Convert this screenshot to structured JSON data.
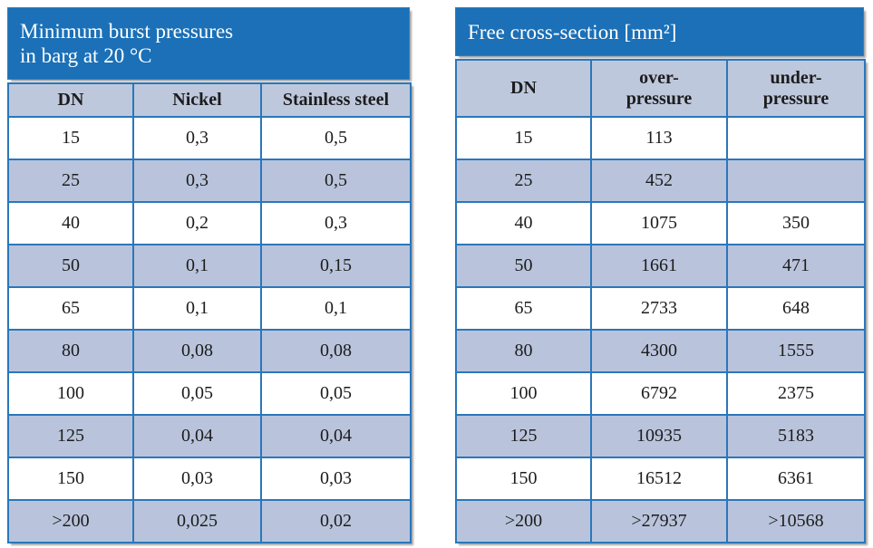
{
  "page": {
    "background_color": "#ffffff"
  },
  "colors": {
    "title_bar_bg": "#1b70b7",
    "title_text": "#ffffff",
    "cell_border": "#2a77bb",
    "header_row_bg": "#bec8dd",
    "shaded_row_bg": "#b9c4dc",
    "plain_row_bg": "#ffffff",
    "data_text": "#1c1c1c"
  },
  "tables": [
    {
      "name": "minimum-burst-pressures",
      "title": "Minimum burst pressures\nin barg at 20 °C",
      "columns": [
        "DN",
        "Nickel",
        "Stainless steel"
      ],
      "rows": [
        [
          "15",
          "0,3",
          "0,5"
        ],
        [
          "25",
          "0,3",
          "0,5"
        ],
        [
          "40",
          "0,2",
          "0,3"
        ],
        [
          "50",
          "0,1",
          "0,15"
        ],
        [
          "65",
          "0,1",
          "0,1"
        ],
        [
          "80",
          "0,08",
          "0,08"
        ],
        [
          "100",
          "0,05",
          "0,05"
        ],
        [
          "125",
          "0,04",
          "0,04"
        ],
        [
          "150",
          "0,03",
          "0,03"
        ],
        [
          ">200",
          "0,025",
          "0,02"
        ]
      ]
    },
    {
      "name": "free-cross-section",
      "title": "Free cross-section [mm²]",
      "columns": [
        "DN",
        "over-\npressure",
        "under-\npressure"
      ],
      "rows": [
        [
          "15",
          "113",
          ""
        ],
        [
          "25",
          "452",
          ""
        ],
        [
          "40",
          "1075",
          "350"
        ],
        [
          "50",
          "1661",
          "471"
        ],
        [
          "65",
          "2733",
          "648"
        ],
        [
          "80",
          "4300",
          "1555"
        ],
        [
          "100",
          "6792",
          "2375"
        ],
        [
          "125",
          "10935",
          "5183"
        ],
        [
          "150",
          "16512",
          "6361"
        ],
        [
          ">200",
          ">27937",
          ">10568"
        ]
      ]
    }
  ]
}
